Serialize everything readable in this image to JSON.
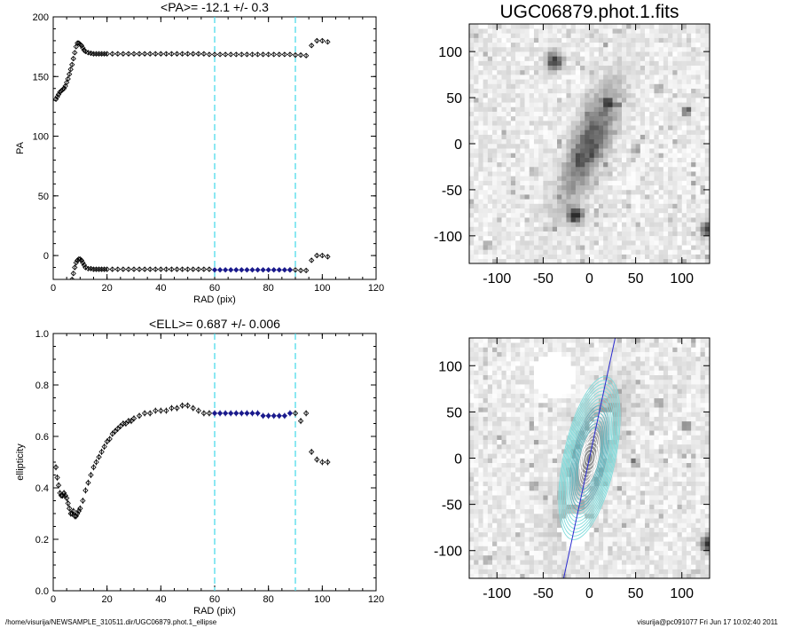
{
  "colors": {
    "points": "#000000",
    "fit_points": "#1a1a8c",
    "bounds": "#40d8e8",
    "major_axis": "#2a2ad0",
    "contour": "#7fdcdc"
  },
  "footer": {
    "left": "/home/visurija/NEWSAMPLE_310511.dir/UGC06879.phot.1_ellipse",
    "right": "visurija@pc091077  Fri Jun 17 10:02:40 2011"
  },
  "chart_data": [
    {
      "type": "scatter",
      "title": "<PA>= -12.1 +/-   0.3",
      "xlabel": "RAD (pix)",
      "ylabel": "PA",
      "xlim": [
        0,
        120
      ],
      "ylim": [
        -20,
        200
      ],
      "xticks": [
        0,
        20,
        40,
        60,
        80,
        100,
        120
      ],
      "yticks": [
        0,
        50,
        100,
        150,
        200
      ],
      "fit_range": [
        60,
        90
      ],
      "series": [
        {
          "x": [
            1,
            1.5,
            2,
            2.5,
            3,
            3.5,
            4,
            4.5,
            5,
            5.5,
            6,
            6.5,
            7,
            7.5,
            8,
            8.5,
            9,
            9.5,
            10,
            10.5,
            11,
            11.5,
            12,
            13,
            14,
            15,
            16,
            17,
            18,
            19,
            20,
            22,
            24,
            26,
            28,
            30,
            32,
            34,
            36,
            38,
            40,
            42,
            44,
            46,
            48,
            50,
            52,
            54,
            56,
            58,
            60,
            62,
            64,
            66,
            68,
            70,
            72,
            74,
            76,
            78,
            80,
            82,
            84,
            86,
            88,
            90,
            92,
            94,
            96,
            98,
            100,
            102
          ],
          "y": [
            131,
            133,
            135,
            137,
            138,
            139,
            140,
            142,
            145,
            148,
            152,
            156,
            160,
            165,
            170,
            175,
            178,
            178,
            177,
            176,
            174,
            172,
            171,
            170,
            169.5,
            169,
            169,
            169,
            169,
            169,
            169,
            169,
            169,
            169,
            169,
            169,
            169,
            169,
            169,
            169,
            169,
            169,
            169,
            169,
            169,
            169,
            169,
            169,
            169,
            168.5,
            168.5,
            168.5,
            168.5,
            168.5,
            168.5,
            168.5,
            168.5,
            168.5,
            168.5,
            168.5,
            168.5,
            168.5,
            168.5,
            168.5,
            168.5,
            168,
            168,
            167.5,
            176,
            180,
            180,
            179
          ]
        },
        {
          "x": [
            6.5,
            7,
            7.5,
            8,
            8.5,
            9,
            9.5,
            10,
            10.5,
            11,
            11.5,
            12,
            13,
            14,
            15,
            16,
            17,
            18,
            19,
            20,
            22,
            24,
            26,
            28,
            30,
            32,
            34,
            36,
            38,
            40,
            42,
            44,
            46,
            48,
            50,
            52,
            54,
            56,
            58,
            88,
            90,
            92,
            94,
            96,
            98,
            100,
            102
          ],
          "y": [
            -24,
            -20,
            -15,
            -10,
            -6,
            -4,
            -3,
            -3,
            -4,
            -6,
            -8,
            -10,
            -11,
            -11,
            -11.5,
            -11.5,
            -11.5,
            -11.5,
            -11.5,
            -11.5,
            -11.5,
            -11.5,
            -11.5,
            -11.5,
            -11.5,
            -11.5,
            -11.5,
            -11.5,
            -11.5,
            -11.5,
            -11.5,
            -11.5,
            -11.5,
            -11.5,
            -11.5,
            -11.5,
            -11.5,
            -11.5,
            -11.5,
            -12,
            -12,
            -12.5,
            -12.5,
            -4,
            0,
            0,
            -1
          ]
        },
        {
          "x": [
            60,
            62,
            64,
            66,
            68,
            70,
            72,
            74,
            76,
            78,
            80,
            82,
            84,
            86,
            88
          ],
          "y": [
            -12,
            -12,
            -12,
            -12,
            -12,
            -12,
            -12,
            -12,
            -12,
            -12,
            -12,
            -12,
            -12,
            -12,
            -12
          ]
        }
      ]
    },
    {
      "type": "scatter",
      "title": "<ELL>= 0.687 +/-  0.006",
      "xlabel": "RAD (pix)",
      "ylabel": "ellipticity",
      "xlim": [
        0,
        120
      ],
      "ylim": [
        0.0,
        1.0
      ],
      "xticks": [
        0,
        20,
        40,
        60,
        80,
        100,
        120
      ],
      "yticks": [
        "0.0",
        "0.2",
        "0.4",
        "0.6",
        "0.8",
        "1.0"
      ],
      "fit_range": [
        60,
        90
      ],
      "series": [
        {
          "x": [
            1,
            1.5,
            2,
            2.5,
            3,
            3.5,
            4,
            4.5,
            5,
            5.5,
            6,
            6.5,
            7,
            7.5,
            8,
            8.5,
            9,
            9.5,
            10,
            11,
            12,
            13,
            14,
            15,
            16,
            17,
            18,
            19,
            20,
            21,
            22,
            23,
            24,
            25,
            26,
            27,
            28,
            29,
            30,
            32,
            34,
            36,
            38,
            40,
            42,
            44,
            46,
            48,
            50,
            52,
            54,
            56,
            58,
            90,
            92,
            94,
            96,
            98,
            100,
            102
          ],
          "y": [
            0.48,
            0.44,
            0.41,
            0.38,
            0.37,
            0.37,
            0.38,
            0.37,
            0.36,
            0.34,
            0.32,
            0.3,
            0.3,
            0.31,
            0.29,
            0.29,
            0.3,
            0.31,
            0.32,
            0.35,
            0.39,
            0.42,
            0.45,
            0.48,
            0.5,
            0.52,
            0.54,
            0.56,
            0.58,
            0.59,
            0.61,
            0.62,
            0.63,
            0.64,
            0.65,
            0.65,
            0.66,
            0.66,
            0.67,
            0.68,
            0.69,
            0.69,
            0.7,
            0.7,
            0.7,
            0.71,
            0.71,
            0.72,
            0.72,
            0.71,
            0.7,
            0.69,
            0.69,
            0.69,
            0.66,
            0.69,
            0.54,
            0.51,
            0.5,
            0.5
          ]
        },
        {
          "x": [
            60,
            62,
            64,
            66,
            68,
            70,
            72,
            74,
            76,
            78,
            80,
            82,
            84,
            86,
            88
          ],
          "y": [
            0.69,
            0.69,
            0.69,
            0.69,
            0.69,
            0.69,
            0.69,
            0.69,
            0.69,
            0.68,
            0.68,
            0.68,
            0.68,
            0.68,
            0.69
          ]
        }
      ]
    },
    {
      "type": "heatmap",
      "title": "UGC06879.phot.1.fits",
      "xlim": [
        -130,
        130
      ],
      "ylim": [
        -130,
        130
      ],
      "xticks": [
        -100,
        -50,
        0,
        50,
        100
      ],
      "yticks": [
        -100,
        -50,
        0,
        50,
        100
      ]
    },
    {
      "type": "heatmap",
      "title": "",
      "xlim": [
        -130,
        130
      ],
      "ylim": [
        -130,
        130
      ],
      "xticks": [
        -100,
        -50,
        0,
        50,
        100
      ],
      "yticks": [
        -100,
        -50,
        0,
        50,
        100
      ]
    }
  ]
}
